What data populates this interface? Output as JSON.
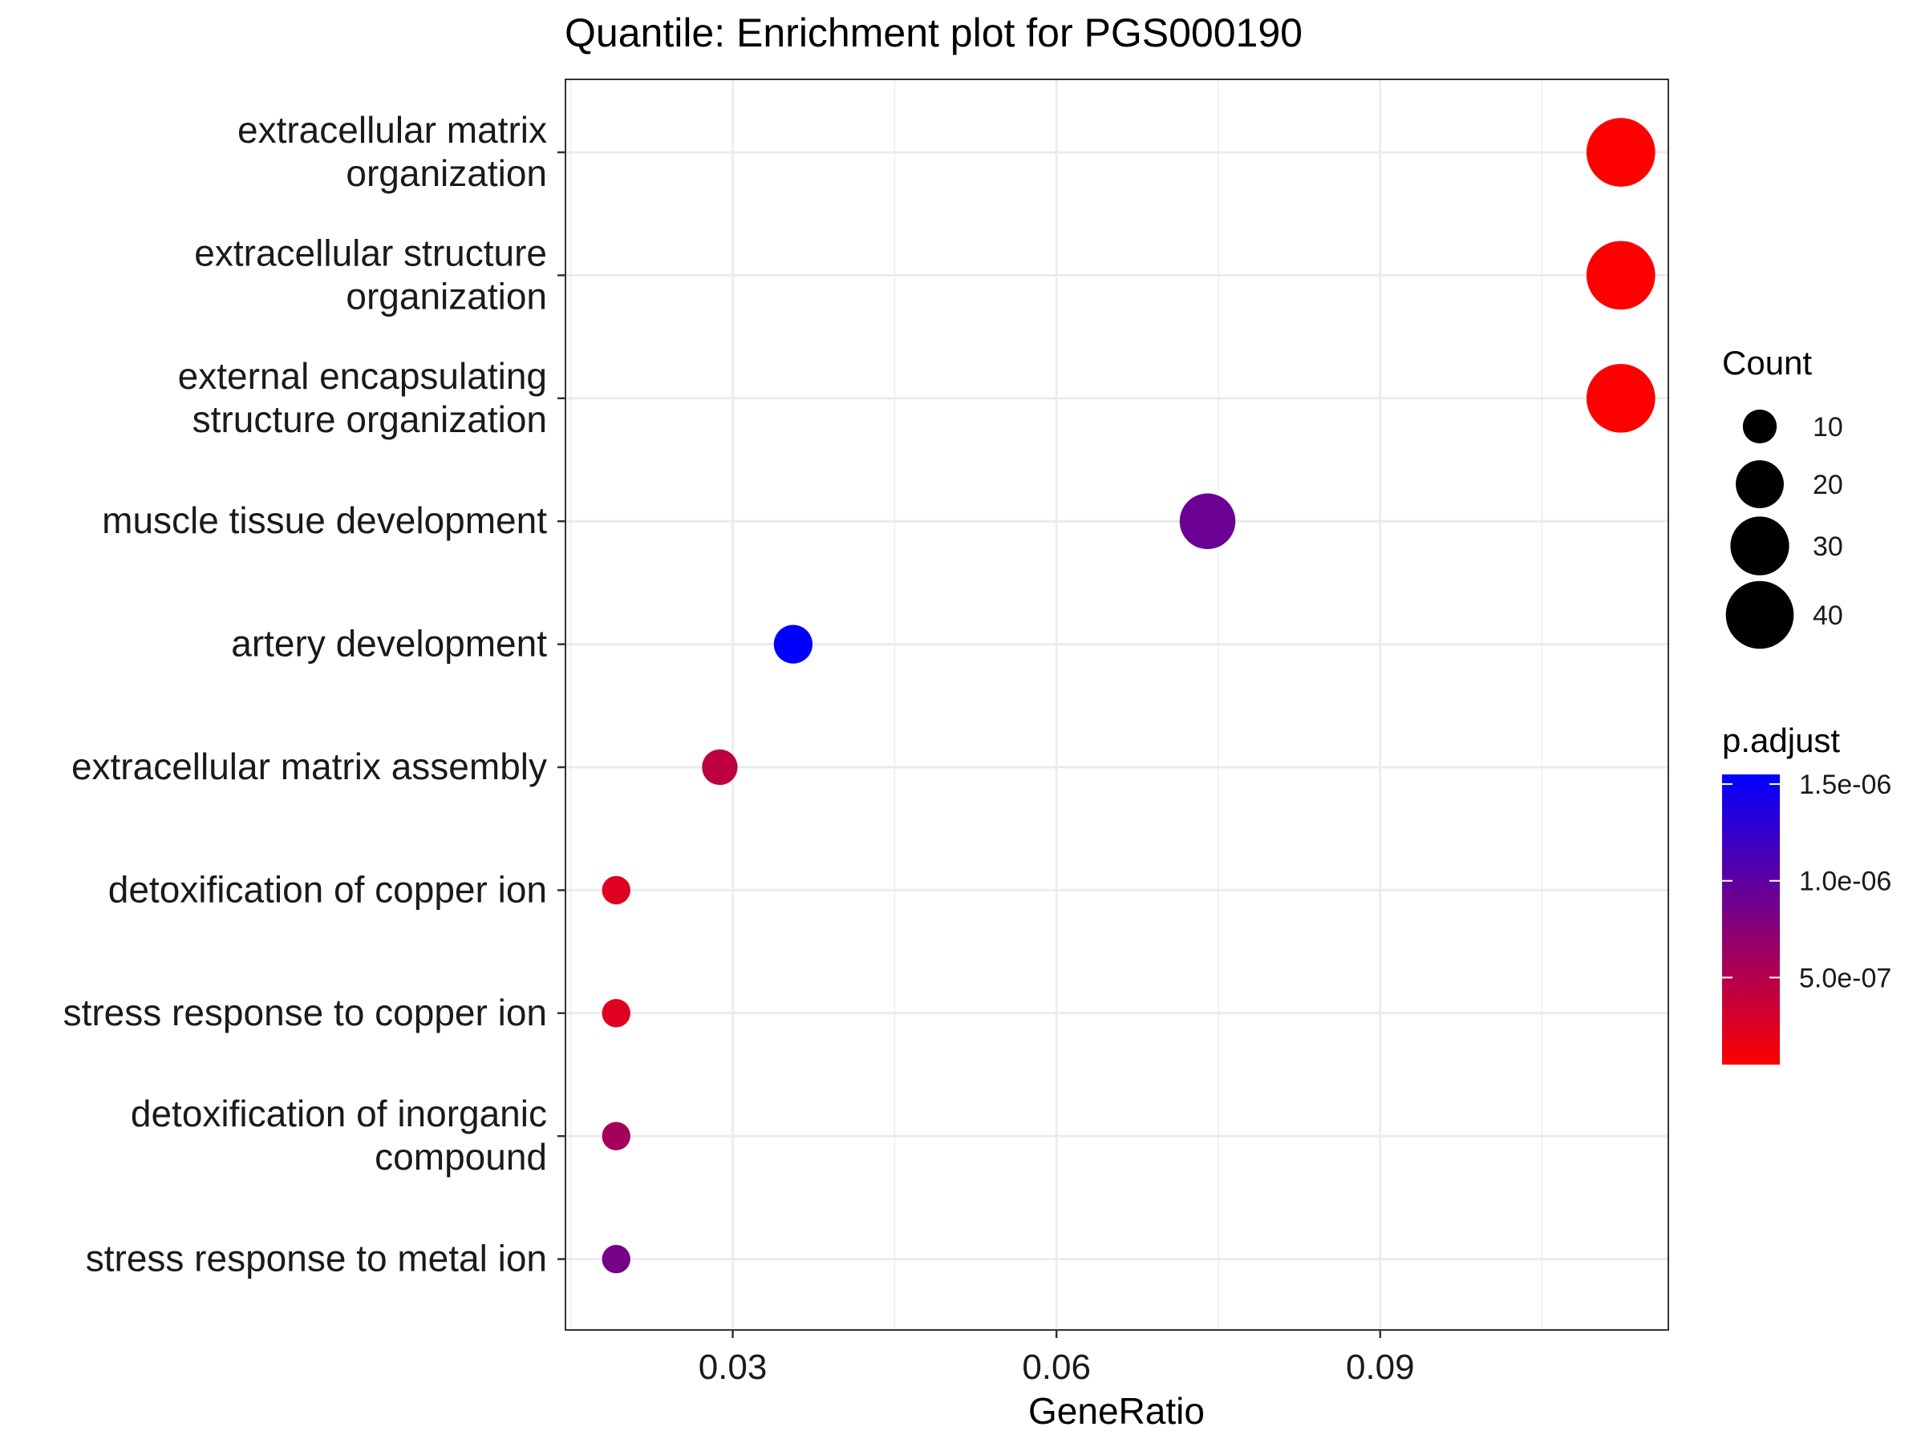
{
  "chart_data": {
    "type": "scatter",
    "title": "Quantile: Enrichment plot for PGS000190",
    "xlabel": "GeneRatio",
    "ylabel": "",
    "xlim": [
      0.0145,
      0.1167
    ],
    "x_ticks": [
      0.03,
      0.06,
      0.09
    ],
    "x_tick_labels": [
      "0.03",
      "0.06",
      "0.09"
    ],
    "grid": true,
    "categories": [
      [
        "extracellular matrix",
        "organization"
      ],
      [
        "extracellular structure",
        "organization"
      ],
      [
        "external encapsulating",
        "structure organization"
      ],
      [
        "muscle tissue development"
      ],
      [
        "artery development"
      ],
      [
        "extracellular matrix assembly"
      ],
      [
        "detoxification of copper ion"
      ],
      [
        "stress response to copper ion"
      ],
      [
        "detoxification of inorganic",
        "compound"
      ],
      [
        "stress response to metal ion"
      ]
    ],
    "points": [
      {
        "gene_ratio": 0.1123,
        "count": 41,
        "p_adjust": 5e-08
      },
      {
        "gene_ratio": 0.1123,
        "count": 41,
        "p_adjust": 5e-08
      },
      {
        "gene_ratio": 0.1123,
        "count": 41,
        "p_adjust": 5e-08
      },
      {
        "gene_ratio": 0.074,
        "count": 27,
        "p_adjust": 9.2e-07
      },
      {
        "gene_ratio": 0.0356,
        "count": 13,
        "p_adjust": 1.55e-06
      },
      {
        "gene_ratio": 0.0288,
        "count": 11,
        "p_adjust": 4.4e-07
      },
      {
        "gene_ratio": 0.0192,
        "count": 7,
        "p_adjust": 2.3e-07
      },
      {
        "gene_ratio": 0.0192,
        "count": 7,
        "p_adjust": 2.3e-07
      },
      {
        "gene_ratio": 0.0192,
        "count": 7,
        "p_adjust": 5.8e-07
      },
      {
        "gene_ratio": 0.0192,
        "count": 7,
        "p_adjust": 8.5e-07
      }
    ],
    "size_legend": {
      "title": "Count",
      "values": [
        10,
        20,
        30,
        40
      ],
      "labels": [
        "10",
        "20",
        "30",
        "40"
      ]
    },
    "color_legend": {
      "title": "p.adjust",
      "range": [
        5e-08,
        1.55e-06
      ],
      "ticks": [
        1.5e-06,
        1e-06,
        5e-07
      ],
      "tick_labels": [
        "1.5e-06",
        "1.0e-06",
        "5.0e-07"
      ],
      "low_color": "#ff0000",
      "high_color": "#0000ff"
    }
  }
}
